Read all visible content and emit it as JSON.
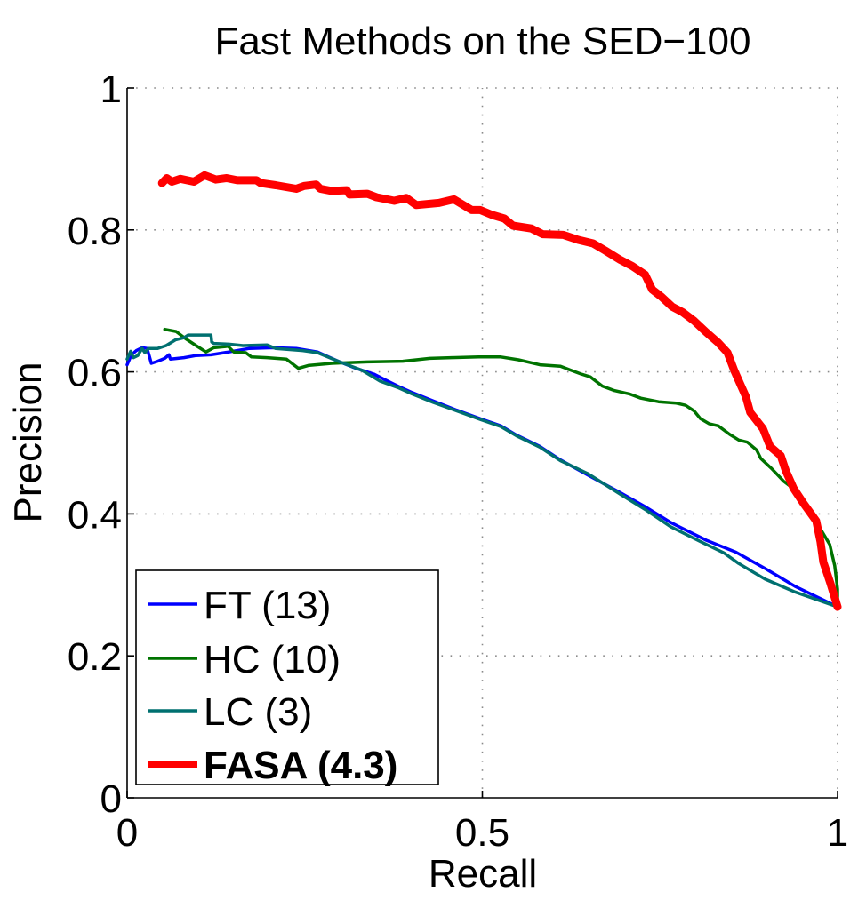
{
  "chart_data": {
    "type": "line",
    "title": "Fast Methods on the SED−100",
    "xlabel": "Recall",
    "ylabel": "Precision",
    "xlim": [
      0,
      1
    ],
    "ylim": [
      0,
      1
    ],
    "xticks": [
      0,
      0.5,
      1
    ],
    "xtick_labels": [
      "0",
      "0.5",
      "1"
    ],
    "yticks": [
      0,
      0.2,
      0.4,
      0.6,
      0.8,
      1
    ],
    "ytick_labels": [
      "0",
      "0.2",
      "0.4",
      "0.6",
      "0.8",
      "1"
    ],
    "grid": true,
    "legend_position": "bottom-left",
    "series": [
      {
        "name": "FT (13)",
        "color": "#0000ff",
        "bold": false,
        "x": [
          0.0,
          0.006,
          0.013,
          0.021,
          0.028,
          0.031,
          0.034,
          0.043,
          0.053,
          0.059,
          0.061,
          0.08,
          0.097,
          0.118,
          0.143,
          0.172,
          0.205,
          0.238,
          0.268,
          0.297,
          0.322,
          0.347,
          0.363,
          0.381,
          0.401,
          0.431,
          0.464,
          0.497,
          0.526,
          0.548,
          0.581,
          0.61,
          0.648,
          0.694,
          0.731,
          0.765,
          0.815,
          0.857,
          0.898,
          0.94,
          1.0
        ],
        "y": [
          0.61,
          0.624,
          0.63,
          0.634,
          0.633,
          0.623,
          0.612,
          0.615,
          0.619,
          0.624,
          0.618,
          0.62,
          0.623,
          0.624,
          0.628,
          0.633,
          0.634,
          0.633,
          0.628,
          0.615,
          0.605,
          0.597,
          0.589,
          0.58,
          0.571,
          0.559,
          0.546,
          0.534,
          0.524,
          0.511,
          0.495,
          0.476,
          0.455,
          0.43,
          0.409,
          0.388,
          0.363,
          0.346,
          0.323,
          0.298,
          0.269
        ]
      },
      {
        "name": "HC (10)",
        "color": "#007300",
        "bold": false,
        "x": [
          0.053,
          0.069,
          0.082,
          0.097,
          0.111,
          0.122,
          0.142,
          0.15,
          0.167,
          0.175,
          0.197,
          0.224,
          0.241,
          0.255,
          0.288,
          0.338,
          0.388,
          0.426,
          0.456,
          0.495,
          0.526,
          0.551,
          0.581,
          0.61,
          0.623,
          0.639,
          0.652,
          0.669,
          0.685,
          0.707,
          0.723,
          0.748,
          0.773,
          0.786,
          0.798,
          0.807,
          0.819,
          0.832,
          0.848,
          0.861,
          0.873,
          0.886,
          0.892,
          0.907,
          0.924,
          0.94,
          0.952,
          0.974,
          0.989,
          0.996,
          1.0,
          1.0
        ],
        "y": [
          0.66,
          0.657,
          0.647,
          0.637,
          0.628,
          0.634,
          0.636,
          0.628,
          0.627,
          0.621,
          0.62,
          0.618,
          0.605,
          0.609,
          0.612,
          0.614,
          0.615,
          0.619,
          0.62,
          0.621,
          0.621,
          0.617,
          0.61,
          0.608,
          0.603,
          0.597,
          0.593,
          0.58,
          0.574,
          0.569,
          0.563,
          0.558,
          0.556,
          0.553,
          0.545,
          0.534,
          0.527,
          0.524,
          0.512,
          0.504,
          0.501,
          0.49,
          0.478,
          0.464,
          0.446,
          0.434,
          0.42,
          0.382,
          0.357,
          0.327,
          0.294,
          0.269
        ]
      },
      {
        "name": "LC (3)",
        "color": "#007070",
        "bold": false,
        "x": [
          0.0,
          0.005,
          0.009,
          0.015,
          0.021,
          0.025,
          0.03,
          0.043,
          0.055,
          0.068,
          0.08,
          0.086,
          0.105,
          0.118,
          0.119,
          0.122,
          0.143,
          0.163,
          0.197,
          0.209,
          0.247,
          0.268,
          0.297,
          0.331,
          0.356,
          0.381,
          0.401,
          0.431,
          0.464,
          0.497,
          0.526,
          0.548,
          0.581,
          0.61,
          0.648,
          0.697,
          0.731,
          0.765,
          0.807,
          0.84,
          0.861,
          0.898,
          0.94,
          1.0
        ],
        "y": [
          0.618,
          0.629,
          0.62,
          0.623,
          0.633,
          0.627,
          0.633,
          0.633,
          0.637,
          0.645,
          0.648,
          0.652,
          0.652,
          0.652,
          0.642,
          0.64,
          0.639,
          0.637,
          0.638,
          0.633,
          0.63,
          0.627,
          0.615,
          0.602,
          0.587,
          0.578,
          0.569,
          0.557,
          0.545,
          0.533,
          0.523,
          0.51,
          0.494,
          0.475,
          0.457,
          0.426,
          0.405,
          0.382,
          0.361,
          0.345,
          0.33,
          0.308,
          0.29,
          0.269
        ]
      },
      {
        "name": "FASA (4.3)",
        "color": "#ff0000",
        "bold": true,
        "x": [
          0.049,
          0.056,
          0.063,
          0.075,
          0.094,
          0.109,
          0.125,
          0.14,
          0.155,
          0.182,
          0.188,
          0.209,
          0.238,
          0.249,
          0.266,
          0.272,
          0.288,
          0.309,
          0.313,
          0.338,
          0.351,
          0.376,
          0.393,
          0.407,
          0.439,
          0.46,
          0.485,
          0.497,
          0.514,
          0.531,
          0.543,
          0.569,
          0.585,
          0.614,
          0.635,
          0.656,
          0.673,
          0.694,
          0.711,
          0.729,
          0.739,
          0.752,
          0.767,
          0.782,
          0.798,
          0.815,
          0.832,
          0.845,
          0.855,
          0.871,
          0.877,
          0.895,
          0.905,
          0.92,
          0.927,
          0.938,
          0.952,
          0.97,
          0.976,
          0.98,
          0.99,
          1.0
        ],
        "y": [
          0.866,
          0.873,
          0.868,
          0.872,
          0.868,
          0.877,
          0.871,
          0.873,
          0.87,
          0.87,
          0.866,
          0.863,
          0.858,
          0.862,
          0.864,
          0.858,
          0.855,
          0.856,
          0.85,
          0.851,
          0.846,
          0.841,
          0.845,
          0.835,
          0.838,
          0.843,
          0.828,
          0.828,
          0.821,
          0.816,
          0.806,
          0.802,
          0.794,
          0.793,
          0.786,
          0.781,
          0.771,
          0.758,
          0.749,
          0.737,
          0.716,
          0.706,
          0.692,
          0.684,
          0.672,
          0.656,
          0.641,
          0.627,
          0.601,
          0.565,
          0.543,
          0.52,
          0.495,
          0.482,
          0.461,
          0.436,
          0.415,
          0.39,
          0.361,
          0.332,
          0.302,
          0.269
        ]
      }
    ]
  }
}
